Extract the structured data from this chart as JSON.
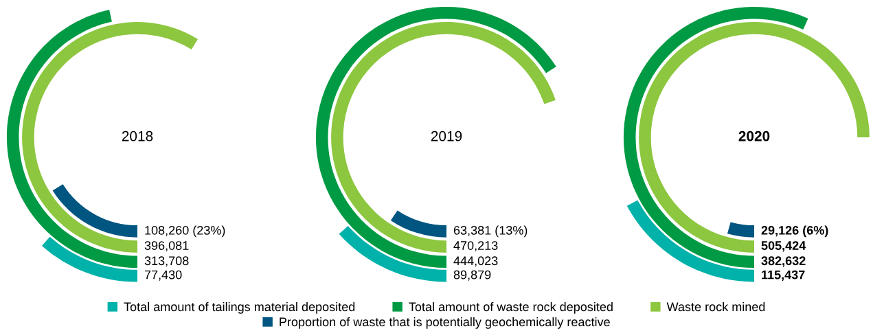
{
  "chart_data": {
    "type": "other",
    "legend": "bottom",
    "categories": [
      "2018",
      "2019",
      "2020"
    ],
    "series": [
      {
        "name": "Total amount of tailings material deposited",
        "color": "#00b2a9",
        "values": [
          77430,
          89879,
          115437
        ],
        "value_labels": [
          "77,430",
          "89,879",
          "115,437"
        ]
      },
      {
        "name": "Total amount of waste rock deposited",
        "color": "#009a44",
        "values": [
          313708,
          444023,
          382632
        ],
        "value_labels": [
          "313,708",
          "444,023",
          "382,632"
        ]
      },
      {
        "name": "Waste rock mined",
        "color": "#8dc63f",
        "values": [
          396081,
          470213,
          505424
        ],
        "value_labels": [
          "396,081",
          "470,213",
          "505,424"
        ]
      },
      {
        "name": "Proportion of waste that is potentially geochemically reactive",
        "color": "#005581",
        "values": [
          108260,
          63381,
          29126
        ],
        "value_labels": [
          "108,260 (23%)",
          "63,381 (13%)",
          "29,126 (6%)"
        ]
      }
    ]
  }
}
